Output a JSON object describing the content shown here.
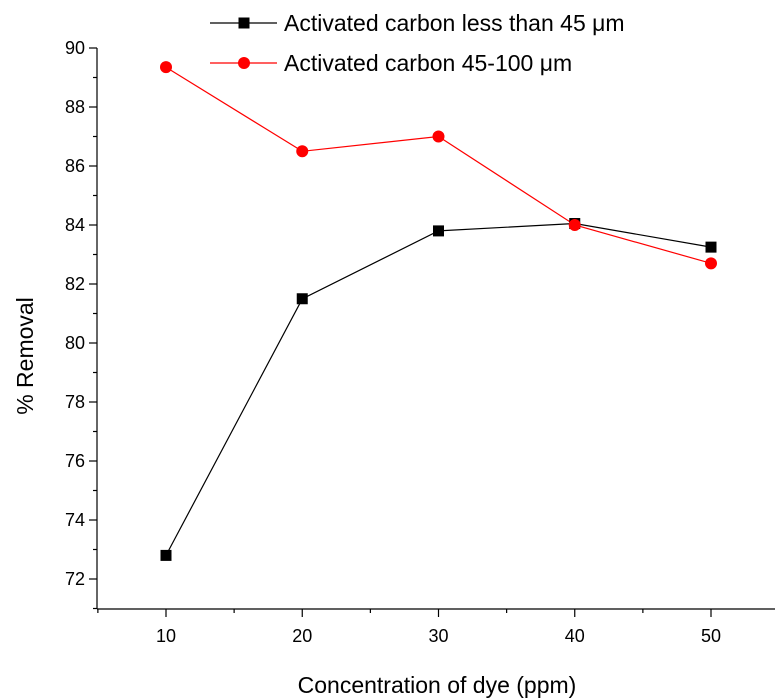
{
  "chart_data": {
    "type": "line",
    "title": "",
    "xlabel": "Concentration of dye (ppm)",
    "ylabel": "% Removal",
    "x": [
      10,
      20,
      30,
      40,
      50
    ],
    "xticks": [
      "10",
      "20",
      "30",
      "40",
      "50"
    ],
    "yticks": [
      "72",
      "74",
      "76",
      "78",
      "80",
      "82",
      "84",
      "86",
      "88",
      "90"
    ],
    "xlim": [
      0,
      60
    ],
    "ylim": [
      71,
      90
    ],
    "grid": false,
    "legend_position": "top",
    "series": [
      {
        "name": "Activated carbon less than 45 μm",
        "marker": "square",
        "color": "#000000",
        "values": [
          72.8,
          81.5,
          83.8,
          84.05,
          83.25
        ]
      },
      {
        "name": "Activated carbon 45-100 μm",
        "marker": "circle",
        "color": "#ff0000",
        "values": [
          89.35,
          86.5,
          87.0,
          84.0,
          82.7
        ]
      }
    ]
  }
}
